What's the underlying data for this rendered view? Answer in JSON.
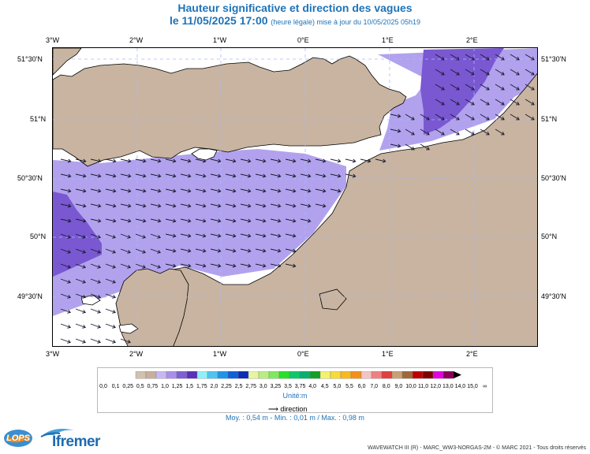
{
  "header": {
    "title": "Hauteur significative et direction des vagues",
    "datetime": "le 11/05/2025 17:00",
    "update_note": "(heure légale) mise à jour du 10/05/2025 05h19"
  },
  "map": {
    "lon_ticks": [
      "3°W",
      "2°W",
      "1°W",
      "0°E",
      "1°E",
      "2°E"
    ],
    "lat_ticks": [
      "51°30'N",
      "51°N",
      "50°30'N",
      "50°N",
      "49°30'N"
    ],
    "land_color": "#c8b4a0",
    "grid_style": "dashed light blue",
    "colors": {
      "band_low": "#b2a2ee",
      "band_mid": "#8062d8",
      "band_high": "#6a46c6"
    }
  },
  "legend": {
    "labels": [
      "0,0",
      "0,1",
      "0,25",
      "0,5",
      "0,75",
      "1,0",
      "1,25",
      "1,5",
      "1,75",
      "2,0",
      "2,25",
      "2,5",
      "2,75",
      "3,0",
      "3,25",
      "3,5",
      "3,75",
      "4,0",
      "4,5",
      "5,0",
      "5,5",
      "6,0",
      "7,0",
      "8,0",
      "9,0",
      "10,0",
      "11,0",
      "12,0",
      "13,0",
      "14,0",
      "15,0",
      "∞"
    ],
    "colors": [
      "#d2c1ae",
      "#c7b09b",
      "#c8b8f0",
      "#a890ea",
      "#7f5fd6",
      "#5a30bc",
      "#90f0f8",
      "#4fc4f2",
      "#2095e6",
      "#1060d8",
      "#0a2cb8",
      "#e6f5a0",
      "#b8ee80",
      "#80e860",
      "#28e028",
      "#10c868",
      "#08b070",
      "#14a028",
      "#f2f26c",
      "#f8da38",
      "#f8b820",
      "#f4901a",
      "#f4c4c4",
      "#f08080",
      "#e04040",
      "#c8a078",
      "#a06838",
      "#c00000",
      "#800000",
      "#e000e0",
      "#8a0058"
    ],
    "unit_label": "Unité:m",
    "direction_label": "direction"
  },
  "stats": {
    "text": "Moy. : 0,54 m  -  Min. : 0,01 m / Max. : 0,98 m"
  },
  "footer": {
    "credit": "WAVEWATCH III (R) - MARC_WW3-NORGAS-2M - © MARC 2021 - Tous droits réservés"
  },
  "logos": {
    "lops": "LOPS",
    "ifremer": "Ifremer"
  }
}
